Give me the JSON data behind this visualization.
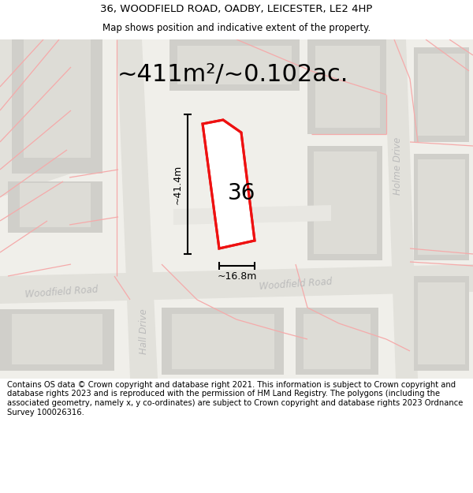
{
  "title_line1": "36, WOODFIELD ROAD, OADBY, LEICESTER, LE2 4HP",
  "title_line2": "Map shows position and indicative extent of the property.",
  "area_text": "~411m²/~0.102ac.",
  "label_36": "36",
  "dim_height": "~41.4m",
  "dim_width": "~16.8m",
  "footer_text": "Contains OS data © Crown copyright and database right 2021. This information is subject to Crown copyright and database rights 2023 and is reproduced with the permission of HM Land Registry. The polygons (including the associated geometry, namely x, y co-ordinates) are subject to Crown copyright and database rights 2023 Ordnance Survey 100026316.",
  "map_bg": "#f0efea",
  "road_fill": "#e2e1db",
  "building_fill": "#d0cfca",
  "highlight_fill": "#f8f8f6",
  "red_line_color": "#ee1111",
  "pink_line_color": "#f5aaaa",
  "black_color": "#000000",
  "title_fontsize": 9.5,
  "subtitle_fontsize": 8.5,
  "area_fontsize": 22,
  "label_fontsize": 20,
  "dim_fontsize": 9,
  "footer_fontsize": 7.2,
  "road_label_fontsize": 8.5,
  "road_label_color": "#bbbbbb"
}
